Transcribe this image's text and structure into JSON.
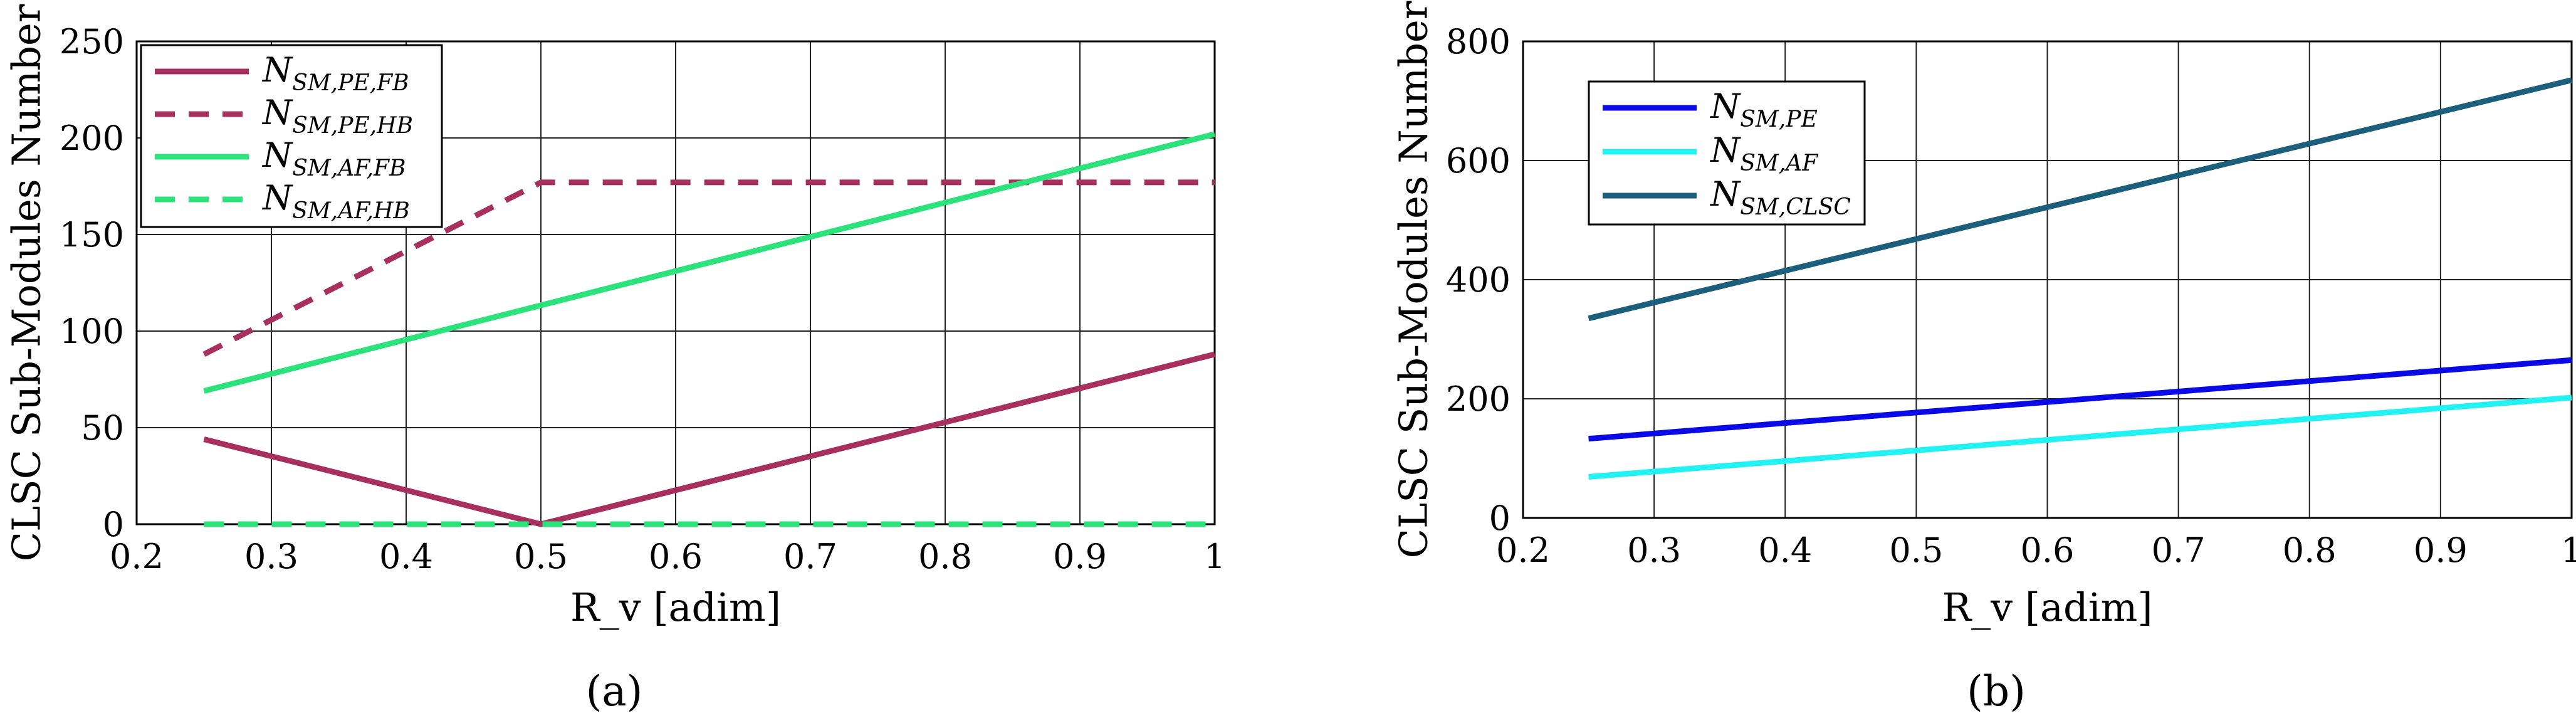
{
  "chart_data": [
    {
      "type": "line",
      "panel_label": "(a)",
      "xlabel": "R_v [adim]",
      "ylabel": "CLSC Sub-Modules Number",
      "xlim": [
        0.2,
        1
      ],
      "ylim": [
        0,
        250
      ],
      "xticks": [
        0.2,
        0.3,
        0.4,
        0.5,
        0.6,
        0.7,
        0.8,
        0.9,
        1
      ],
      "yticks": [
        0,
        50,
        100,
        150,
        200,
        250
      ],
      "grid": true,
      "legend_position": "top-left",
      "series": [
        {
          "name": "N_{SM,PE,FB}",
          "label_main": "N",
          "label_sub": "SM,PE,FB",
          "color": "#a8305f",
          "dash": "solid",
          "x": [
            0.25,
            0.5,
            1
          ],
          "y": [
            44,
            0,
            88
          ]
        },
        {
          "name": "N_{SM,PE,HB}",
          "label_main": "N",
          "label_sub": "SM,PE,HB",
          "color": "#a8305f",
          "dash": "dashed",
          "x": [
            0.25,
            0.5,
            1
          ],
          "y": [
            88,
            177,
            177
          ]
        },
        {
          "name": "N_{SM,AF,FB}",
          "label_main": "N",
          "label_sub": "SM,AF,FB",
          "color": "#2ce27a",
          "dash": "solid",
          "x": [
            0.25,
            1
          ],
          "y": [
            69,
            202
          ]
        },
        {
          "name": "N_{SM,AF,HB}",
          "label_main": "N",
          "label_sub": "SM,AF,HB",
          "color": "#2ce27a",
          "dash": "dashed",
          "x": [
            0.25,
            1
          ],
          "y": [
            0,
            0
          ]
        }
      ]
    },
    {
      "type": "line",
      "panel_label": "(b)",
      "xlabel": "R_v [adim]",
      "ylabel": "CLSC Sub-Modules Number",
      "xlim": [
        0.2,
        1
      ],
      "ylim": [
        0,
        800
      ],
      "xticks": [
        0.2,
        0.3,
        0.4,
        0.5,
        0.6,
        0.7,
        0.8,
        0.9,
        1
      ],
      "yticks": [
        0,
        200,
        400,
        600,
        800
      ],
      "grid": true,
      "legend_position": "top-left",
      "series": [
        {
          "name": "N_{SM,PE}",
          "label_main": "N",
          "label_sub": "SM,PE",
          "color": "#0a0ae6",
          "dash": "solid",
          "x": [
            0.25,
            1
          ],
          "y": [
            133,
            265
          ]
        },
        {
          "name": "N_{SM,AF}",
          "label_main": "N",
          "label_sub": "SM,AF",
          "color": "#22f2f2",
          "dash": "solid",
          "x": [
            0.25,
            1
          ],
          "y": [
            69,
            202
          ]
        },
        {
          "name": "N_{SM,CLSC}",
          "label_main": "N",
          "label_sub": "SM,CLSC",
          "color": "#1c5f7c",
          "dash": "solid",
          "x": [
            0.25,
            1
          ],
          "y": [
            335,
            735
          ]
        }
      ]
    }
  ]
}
